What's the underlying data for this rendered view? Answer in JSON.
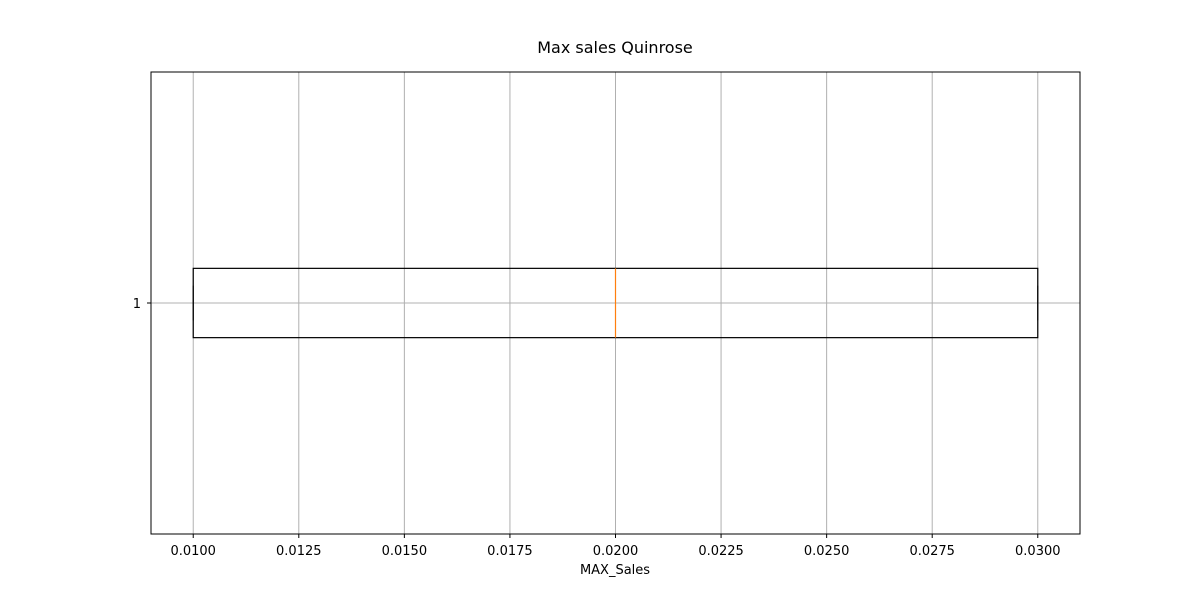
{
  "chart_data": {
    "type": "boxplot",
    "orientation": "horizontal",
    "title": "Max sales Quinrose",
    "xlabel": "MAX_Sales",
    "ylabel": "",
    "xlim": [
      0.009,
      0.031
    ],
    "x_ticks": [
      0.01,
      0.0125,
      0.015,
      0.0175,
      0.02,
      0.0225,
      0.025,
      0.0275,
      0.03
    ],
    "x_tick_labels": [
      "0.0100",
      "0.0125",
      "0.0150",
      "0.0175",
      "0.0200",
      "0.0225",
      "0.0250",
      "0.0275",
      "0.0300"
    ],
    "y_tick_labels": [
      "1"
    ],
    "grid": true,
    "boxes": [
      {
        "label": "1",
        "whisker_low": 0.01,
        "q1": 0.01,
        "median": 0.02,
        "q3": 0.03,
        "whisker_high": 0.03
      }
    ],
    "colors": {
      "box": "#000000",
      "median": "#ff7f0e",
      "grid": "#b0b0b0",
      "axes": "#000000"
    }
  }
}
